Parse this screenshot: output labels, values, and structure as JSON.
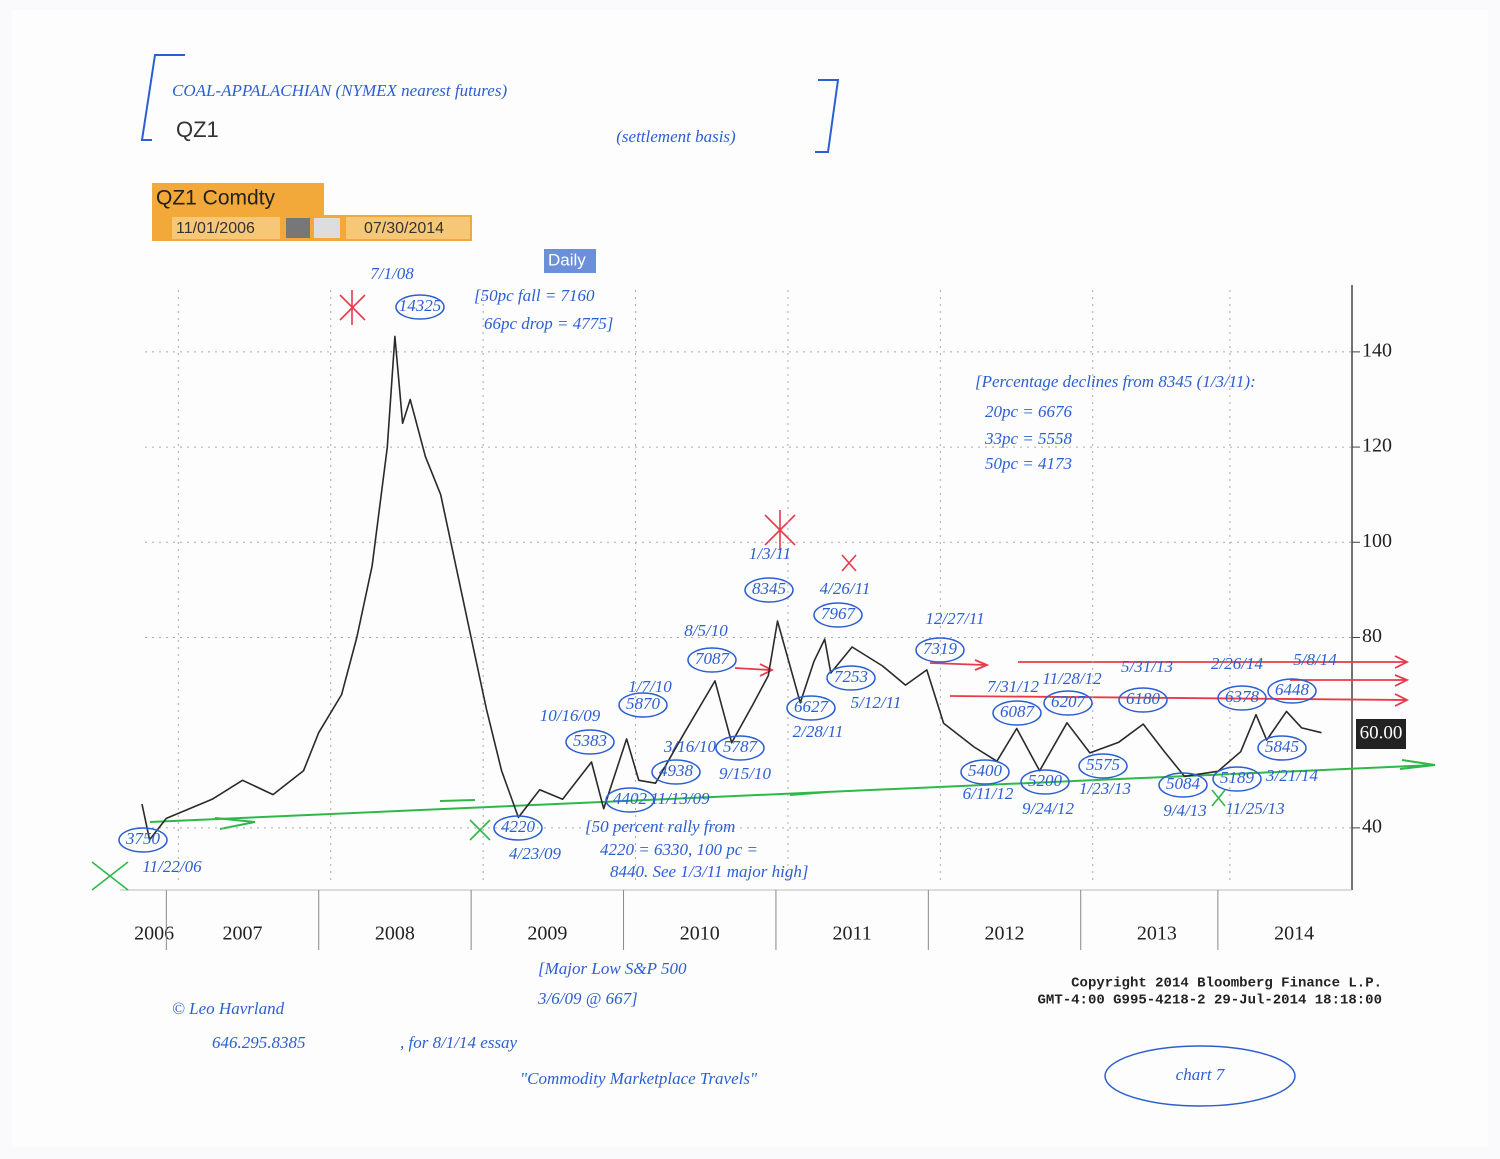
{
  "chart_data": {
    "type": "line",
    "title": "COAL-APPALACHIAN (NYMEX nearest futures)",
    "subtitle": "(settlement basis)",
    "ticker": "QZ1",
    "security": "QZ1 Comdty",
    "start_date": "11/01/2006",
    "end_date": "07/30/2014",
    "period": "Daily",
    "last_price_label": "60.00",
    "copyright": "Copyright 2014 Bloomberg Finance L.P.",
    "timestamp": "GMT-4:00 G995-4218-2 29-Jul-2014 18:18:00",
    "xlim": [
      2006.86,
      2014.78
    ],
    "ylim": [
      28,
      153
    ],
    "xticks": [
      {
        "value": 2006.92,
        "label": "2006"
      },
      {
        "value": 2007.5,
        "label": "2007"
      },
      {
        "value": 2008.5,
        "label": "2008"
      },
      {
        "value": 2009.5,
        "label": "2009"
      },
      {
        "value": 2010.5,
        "label": "2010"
      },
      {
        "value": 2011.5,
        "label": "2011"
      },
      {
        "value": 2012.5,
        "label": "2012"
      },
      {
        "value": 2013.5,
        "label": "2013"
      },
      {
        "value": 2014.4,
        "label": "2014"
      }
    ],
    "yticks": [
      40,
      80,
      100,
      120,
      140
    ],
    "grid": true,
    "series": [
      {
        "name": "QZ1",
        "color": "#2a2a2a",
        "x": [
          2006.84,
          2006.89,
          2007.0,
          2007.3,
          2007.5,
          2007.7,
          2007.9,
          2008.0,
          2008.15,
          2008.25,
          2008.35,
          2008.45,
          2008.5,
          2008.55,
          2008.6,
          2008.7,
          2008.8,
          2008.9,
          2009.0,
          2009.1,
          2009.2,
          2009.31,
          2009.45,
          2009.6,
          2009.79,
          2009.87,
          2010.02,
          2010.1,
          2010.21,
          2010.4,
          2010.6,
          2010.71,
          2010.85,
          2010.95,
          2011.01,
          2011.16,
          2011.25,
          2011.32,
          2011.36,
          2011.5,
          2011.7,
          2011.85,
          2011.99,
          2012.1,
          2012.3,
          2012.45,
          2012.58,
          2012.73,
          2012.91,
          2013.06,
          2013.25,
          2013.41,
          2013.55,
          2013.68,
          2013.9,
          2014.05,
          2014.15,
          2014.22,
          2014.35,
          2014.45,
          2014.58
        ],
        "values": [
          45,
          37.5,
          42,
          46,
          50,
          47,
          52,
          60,
          68,
          80,
          95,
          120,
          143.25,
          125,
          130,
          118,
          110,
          95,
          80,
          65,
          52,
          42.2,
          48,
          46,
          53.83,
          44.02,
          58.7,
          50,
          49.38,
          60,
          70.87,
          57.87,
          66,
          72,
          83.45,
          66.27,
          75,
          79.67,
          72.53,
          78,
          74,
          70,
          73.19,
          62,
          57,
          54,
          60.87,
          52,
          62.07,
          55.75,
          58,
          61.8,
          56,
          50.84,
          51.89,
          56,
          63.78,
          58.45,
          64.48,
          61,
          60
        ]
      }
    ],
    "annotations": [
      {
        "text": "7/1/08"
      },
      {
        "text": "14325",
        "circled": true
      },
      {
        "text": "[50pc fall = 7160"
      },
      {
        "text": "66pc drop = 4775]"
      },
      {
        "text": "[Percentage declines from 8345 (1/3/11):"
      },
      {
        "text": "20pc = 6676"
      },
      {
        "text": "33pc = 5558"
      },
      {
        "text": "50pc = 4173"
      },
      {
        "text": "1/3/11"
      },
      {
        "text": "8345",
        "circled": true
      },
      {
        "text": "4/26/11"
      },
      {
        "text": "7967",
        "circled": true
      },
      {
        "text": "8/5/10"
      },
      {
        "text": "7087",
        "circled": true
      },
      {
        "text": "12/27/11"
      },
      {
        "text": "7319",
        "circled": true
      },
      {
        "text": "7253",
        "circled": true
      },
      {
        "text": "5/12/11"
      },
      {
        "text": "6627",
        "circled": true
      },
      {
        "text": "2/28/11"
      },
      {
        "text": "1/7/10"
      },
      {
        "text": "5870",
        "circled": true
      },
      {
        "text": "10/16/09"
      },
      {
        "text": "5383",
        "circled": true
      },
      {
        "text": "3/16/10"
      },
      {
        "text": "4938",
        "circled": true
      },
      {
        "text": "5787",
        "circled": true
      },
      {
        "text": "9/15/10"
      },
      {
        "text": "4402",
        "circled": true
      },
      {
        "text": "11/13/09"
      },
      {
        "text": "3750",
        "circled": true
      },
      {
        "text": "11/22/06"
      },
      {
        "text": "4220",
        "circled": true
      },
      {
        "text": "4/23/09"
      },
      {
        "text": "[50 percent rally from"
      },
      {
        "text": "4220 = 6330, 100 pc ="
      },
      {
        "text": "8440. See 1/3/11 major high]"
      },
      {
        "text": "7/31/12"
      },
      {
        "text": "6087",
        "circled": true
      },
      {
        "text": "11/28/12"
      },
      {
        "text": "6207",
        "circled": true
      },
      {
        "text": "5/31/13"
      },
      {
        "text": "6180",
        "circled": true
      },
      {
        "text": "2/26/14"
      },
      {
        "text": "6378",
        "circled": true
      },
      {
        "text": "5/8/14"
      },
      {
        "text": "6448",
        "circled": true
      },
      {
        "text": "5400",
        "circled": true
      },
      {
        "text": "6/11/12"
      },
      {
        "text": "5200",
        "circled": true
      },
      {
        "text": "9/24/12"
      },
      {
        "text": "5575",
        "circled": true
      },
      {
        "text": "1/23/13"
      },
      {
        "text": "5084",
        "circled": true
      },
      {
        "text": "9/4/13"
      },
      {
        "text": "5189",
        "circled": true
      },
      {
        "text": "11/25/13"
      },
      {
        "text": "5845",
        "circled": true
      },
      {
        "text": "3/21/14"
      },
      {
        "text": "[Major Low S&P 500"
      },
      {
        "text": "3/6/09 @ 667]"
      },
      {
        "text": "© Leo Havrland"
      },
      {
        "text": "646.295.8385"
      },
      {
        "text": ", for 8/1/14 essay"
      },
      {
        "text": "\"Commodity Marketplace Travels\""
      },
      {
        "text": "chart 7"
      }
    ]
  }
}
